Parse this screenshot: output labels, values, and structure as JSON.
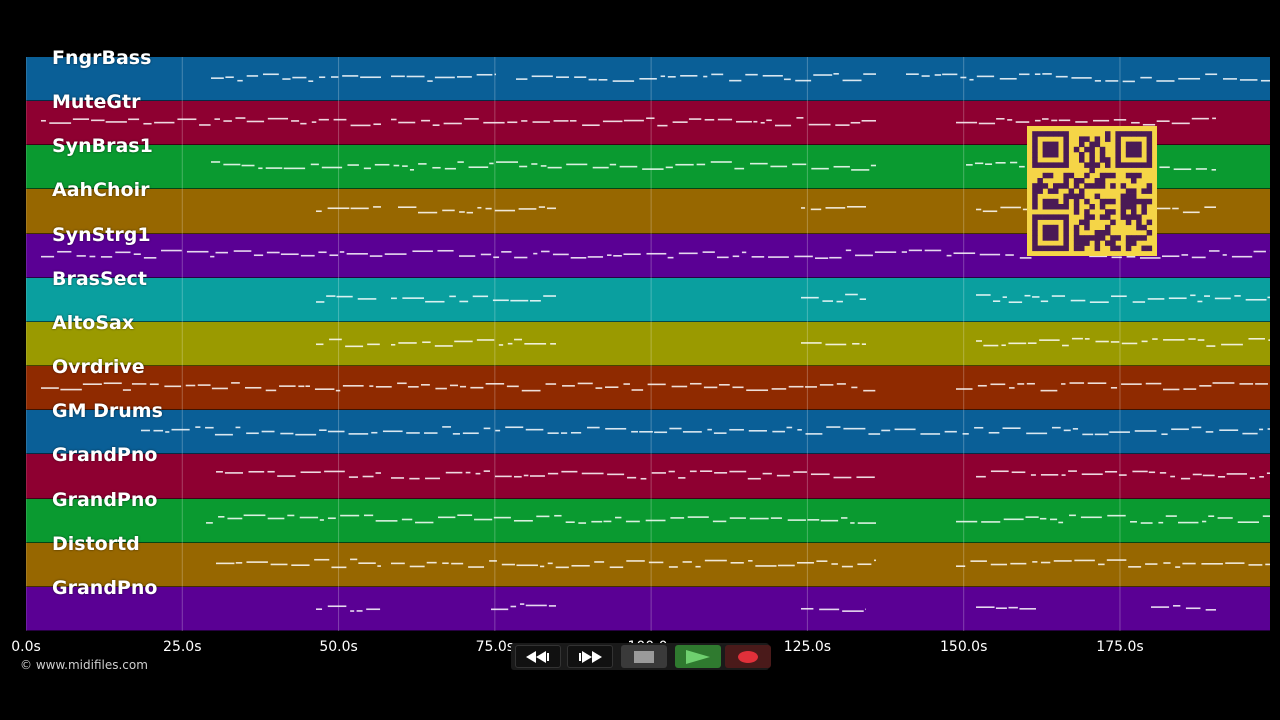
{
  "tracks": [
    {
      "label": "FngrBass",
      "color": "#0a5f97"
    },
    {
      "label": "MuteGtr",
      "color": "#8e0031"
    },
    {
      "label": "SynBras1",
      "color": "#0a9a30"
    },
    {
      "label": "AahChoir",
      "color": "#976700"
    },
    {
      "label": "SynStrg1",
      "color": "#5a0094"
    },
    {
      "label": "BrasSect",
      "color": "#0a9f9f"
    },
    {
      "label": "AltoSax",
      "color": "#9a9a00"
    },
    {
      "label": "Ovrdrive",
      "color": "#8f2a00"
    },
    {
      "label": "GM Drums",
      "color": "#0a5f97"
    },
    {
      "label": "GrandPno",
      "color": "#8e0031"
    },
    {
      "label": "GrandPno",
      "color": "#0a9a30"
    },
    {
      "label": "Distortd",
      "color": "#976700"
    },
    {
      "label": "GrandPno",
      "color": "#5a0094"
    }
  ],
  "timeline": {
    "ticks": [
      "0.0s",
      "25.0s",
      "50.0s",
      "75.0s",
      "100.0s",
      "125.0s",
      "150.0s",
      "175.0s"
    ],
    "duration_seconds": 199
  },
  "copyright": "© www.midifiles.com",
  "transport": {
    "rewind_icon": "rewind-icon",
    "fast_forward_icon": "fast-forward-icon",
    "stop_icon": "stop-icon",
    "play_icon": "play-icon",
    "record_icon": "record-icon"
  },
  "overlay": {
    "qr_code": "qr-code"
  }
}
